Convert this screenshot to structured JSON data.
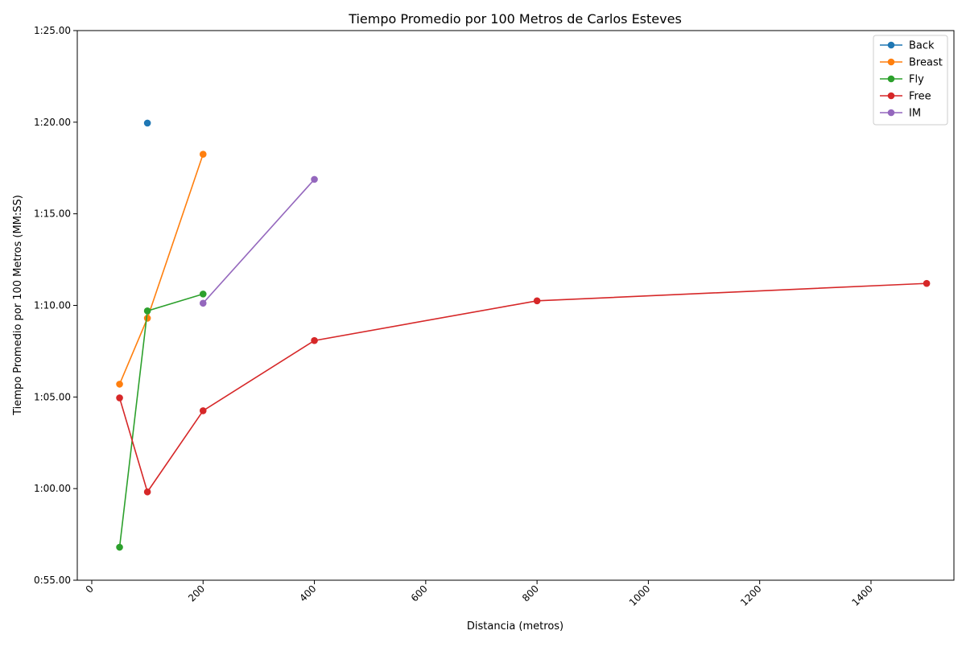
{
  "chart_data": {
    "type": "line",
    "title": "Tiempo Promedio por 100 Metros de Carlos Esteves",
    "xlabel": "Distancia (metros)",
    "ylabel": "Tiempo Promedio por 100 Metros (MM:SS)",
    "xlim": [
      -26,
      1549
    ],
    "ylim": [
      "0:55.00",
      "1:25.00"
    ],
    "x_ticks": [
      0,
      200,
      400,
      600,
      800,
      1000,
      1200,
      1400
    ],
    "x_tick_labels": [
      "0",
      "200",
      "400",
      "600",
      "800",
      "1000",
      "1200",
      "1400"
    ],
    "y_ticks": [
      "0:55.00",
      "1:00.00",
      "1:05.00",
      "1:10.00",
      "1:15.00",
      "1:20.00",
      "1:25.00"
    ],
    "grid": false,
    "legend_position": "top-right",
    "series": [
      {
        "name": "Back",
        "color": "#1f77b4",
        "x": [
          100
        ],
        "y": [
          "1:19.95"
        ]
      },
      {
        "name": "Breast",
        "color": "#ff7f0e",
        "x": [
          50,
          100,
          200
        ],
        "y": [
          "1:05.70",
          "1:09.30",
          "1:18.25"
        ]
      },
      {
        "name": "Fly",
        "color": "#2ca02c",
        "x": [
          50,
          100,
          200
        ],
        "y": [
          "0:56.80",
          "1:09.70",
          "1:10.62"
        ]
      },
      {
        "name": "Free",
        "color": "#d62728",
        "x": [
          50,
          100,
          200,
          400,
          800,
          1500
        ],
        "y": [
          "1:04.95",
          "0:59.82",
          "1:04.25",
          "1:08.08",
          "1:10.25",
          "1:11.20"
        ]
      },
      {
        "name": "IM",
        "color": "#9467bd",
        "x": [
          200,
          400
        ],
        "y": [
          "1:10.12",
          "1:16.88"
        ]
      }
    ]
  }
}
